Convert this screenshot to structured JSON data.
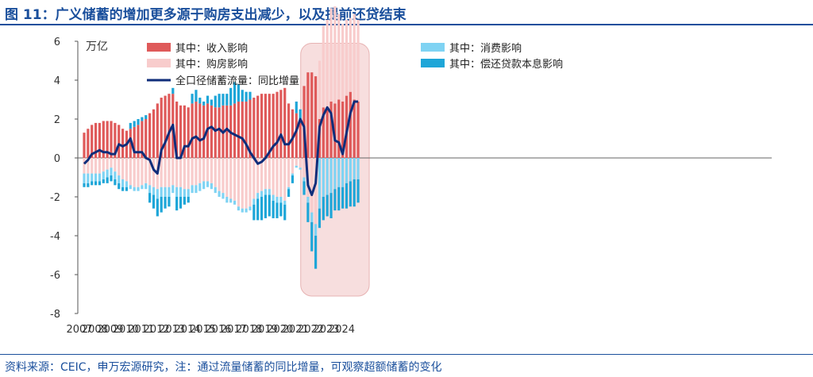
{
  "title": "图 11：广义储蓄的增加更多源于购房支出减少，以及提前还贷结束",
  "source": "资料来源：CEIC，申万宏源研究，注：通过流量储蓄的同比增量，可观察超额储蓄的变化",
  "colors": {
    "income": "#df5a5a",
    "house": "#f8cccc",
    "consumption": "#7fd3f3",
    "repay": "#1ea6d8",
    "line": "#0f2d7a",
    "highlight": "#f7dede",
    "title": "#1a4f9c"
  },
  "chart_data": {
    "type": "bar",
    "ylabel": "万亿",
    "ylim": [
      -8,
      6
    ],
    "yticks": [
      -8,
      -6,
      -4,
      -2,
      0,
      2,
      4,
      6
    ],
    "xticks": [
      "2007",
      "2008",
      "2009",
      "2010",
      "2011",
      "2012",
      "2013",
      "2014",
      "2015",
      "2016",
      "2017",
      "2018",
      "2019",
      "2020",
      "2021",
      "2022",
      "2023",
      "2024"
    ],
    "legend": [
      "其中：收入影响",
      "其中：消费影响",
      "其中：购房影响",
      "其中：偿还贷款本息影响",
      "全口径储蓄流量：同比增量"
    ],
    "highlight_range": [
      "2021Q4",
      "2024Q4"
    ],
    "categories": [
      "2007Q1",
      "2007Q2",
      "2007Q3",
      "2007Q4",
      "2008Q1",
      "2008Q2",
      "2008Q3",
      "2008Q4",
      "2009Q1",
      "2009Q2",
      "2009Q3",
      "2009Q4",
      "2010Q1",
      "2010Q2",
      "2010Q3",
      "2010Q4",
      "2011Q1",
      "2011Q2",
      "2011Q3",
      "2011Q4",
      "2012Q1",
      "2012Q2",
      "2012Q3",
      "2012Q4",
      "2013Q1",
      "2013Q2",
      "2013Q3",
      "2013Q4",
      "2014Q1",
      "2014Q2",
      "2014Q3",
      "2014Q4",
      "2015Q1",
      "2015Q2",
      "2015Q3",
      "2015Q4",
      "2016Q1",
      "2016Q2",
      "2016Q3",
      "2016Q4",
      "2017Q1",
      "2017Q2",
      "2017Q3",
      "2017Q4",
      "2018Q1",
      "2018Q2",
      "2018Q3",
      "2018Q4",
      "2019Q1",
      "2019Q2",
      "2019Q3",
      "2019Q4",
      "2020Q1",
      "2020Q2",
      "2020Q3",
      "2020Q4",
      "2021Q1",
      "2021Q2",
      "2021Q3",
      "2021Q4",
      "2022Q1",
      "2022Q2",
      "2022Q3",
      "2022Q4",
      "2023Q1",
      "2023Q2",
      "2023Q3",
      "2023Q4",
      "2024Q1",
      "2024Q2",
      "2024Q3",
      "2024Q4"
    ],
    "series": [
      {
        "name": "其中：收入影响",
        "values": [
          1.3,
          1.5,
          1.7,
          1.8,
          1.8,
          1.9,
          1.9,
          1.9,
          1.8,
          1.7,
          1.5,
          1.4,
          1.5,
          1.6,
          1.7,
          1.9,
          2.0,
          2.3,
          2.5,
          2.8,
          3.1,
          3.2,
          3.3,
          3.3,
          2.9,
          2.7,
          2.7,
          2.6,
          2.8,
          2.9,
          2.8,
          2.7,
          2.8,
          2.7,
          2.6,
          2.6,
          2.7,
          2.7,
          2.7,
          2.8,
          2.9,
          2.9,
          2.9,
          3.0,
          3.1,
          3.2,
          3.3,
          3.3,
          3.3,
          3.3,
          3.4,
          3.5,
          3.6,
          2.8,
          2.5,
          2.3,
          1.8,
          3.7,
          4.4,
          4.4,
          4.2,
          2.0,
          2.6,
          2.6,
          2.9,
          2.8,
          3.0,
          2.9,
          3.2,
          3.4,
          3.0,
          2.9
        ]
      },
      {
        "name": "其中：购房影响",
        "values": [
          -0.8,
          -0.8,
          -0.8,
          -0.8,
          -0.8,
          -0.7,
          -0.6,
          -0.5,
          -0.7,
          -0.9,
          -1.1,
          -1.2,
          -1.4,
          -1.5,
          -1.5,
          -1.4,
          -1.3,
          -1.4,
          -1.5,
          -1.6,
          -1.5,
          -1.5,
          -1.5,
          -1.4,
          -1.5,
          -1.5,
          -1.6,
          -1.6,
          -1.4,
          -1.4,
          -1.3,
          -1.2,
          -1.2,
          -1.3,
          -1.5,
          -1.7,
          -1.8,
          -2.0,
          -2.1,
          -2.2,
          -2.5,
          -2.6,
          -2.6,
          -2.5,
          -2.1,
          -1.8,
          -1.7,
          -1.6,
          -1.6,
          -1.9,
          -2.0,
          -2.0,
          -2.2,
          -1.5,
          -0.8,
          -0.4,
          -0.5,
          -1.0,
          -2.0,
          -2.8,
          -3.4,
          3.0,
          4.2,
          4.5,
          4.8,
          5.0,
          4.4,
          4.0,
          3.9,
          3.8,
          4.4,
          4.2
        ]
      },
      {
        "name": "其中：消费影响",
        "values": [
          -0.5,
          -0.5,
          -0.4,
          -0.4,
          -0.4,
          -0.4,
          -0.4,
          -0.4,
          -0.4,
          -0.4,
          -0.4,
          -0.3,
          -0.2,
          -0.2,
          -0.2,
          -0.2,
          -0.3,
          -0.4,
          -0.4,
          -0.5,
          -0.5,
          -0.5,
          -0.5,
          -0.4,
          -0.5,
          -0.5,
          -0.4,
          -0.4,
          -0.4,
          -0.4,
          -0.4,
          -0.4,
          -0.3,
          -0.3,
          -0.3,
          -0.3,
          -0.3,
          -0.3,
          -0.2,
          -0.2,
          -0.2,
          -0.2,
          -0.2,
          -0.2,
          -0.3,
          -0.3,
          -0.3,
          -0.3,
          -0.3,
          -0.3,
          -0.3,
          -0.3,
          -0.2,
          -0.1,
          -0.1,
          -0.1,
          -0.1,
          -0.2,
          -0.3,
          -0.5,
          -0.6,
          -2.6,
          -2.0,
          -1.9,
          -1.8,
          -1.6,
          -1.5,
          -1.5,
          -1.3,
          -1.2,
          -1.1,
          -1.1
        ]
      },
      {
        "name": "其中：偿还贷款本息影响",
        "values": [
          -0.2,
          -0.2,
          -0.2,
          -0.2,
          -0.2,
          -0.2,
          -0.3,
          -0.3,
          -0.3,
          -0.3,
          -0.2,
          -0.2,
          0.3,
          0.3,
          0.3,
          0.2,
          0.2,
          -0.5,
          -0.7,
          -0.9,
          -0.8,
          -0.6,
          -0.5,
          0.3,
          -0.7,
          -0.6,
          -0.4,
          -0.3,
          0.5,
          0.6,
          0.3,
          0.2,
          0.4,
          0.3,
          0.6,
          0.7,
          0.6,
          0.6,
          0.9,
          1.1,
          0.9,
          0.6,
          0.5,
          0.4,
          -0.8,
          -1.1,
          -1.2,
          -1.2,
          -1.1,
          -0.9,
          -0.8,
          -0.7,
          -0.8,
          -0.4,
          -0.4,
          0.6,
          0.7,
          -0.7,
          -1.0,
          -1.5,
          -1.7,
          -1.0,
          -1.2,
          -1.1,
          -1.3,
          -1.1,
          -1.2,
          -1.1,
          -1.3,
          -1.3,
          -1.4,
          -1.2
        ]
      },
      {
        "name": "全口径储蓄流量：同比增量",
        "values": [
          -0.3,
          -0.1,
          0.2,
          0.3,
          0.4,
          0.3,
          0.3,
          0.2,
          0.2,
          0.7,
          0.6,
          0.7,
          1.0,
          0.3,
          0.3,
          0.3,
          0.0,
          -0.1,
          -0.6,
          -0.8,
          0.4,
          0.8,
          1.3,
          1.7,
          0.0,
          0.0,
          0.6,
          0.6,
          1.0,
          1.1,
          0.9,
          1.0,
          1.5,
          1.6,
          1.4,
          1.5,
          1.3,
          1.5,
          1.3,
          1.2,
          1.1,
          1.0,
          0.7,
          0.3,
          0.0,
          -0.3,
          -0.2,
          0.0,
          0.3,
          0.6,
          0.8,
          1.2,
          0.7,
          0.7,
          1.0,
          1.4,
          2.0,
          1.6,
          -1.4,
          -1.9,
          -1.3,
          1.6,
          2.2,
          2.6,
          2.3,
          0.9,
          0.8,
          0.2,
          1.3,
          2.3,
          2.9,
          2.9
        ]
      }
    ]
  }
}
